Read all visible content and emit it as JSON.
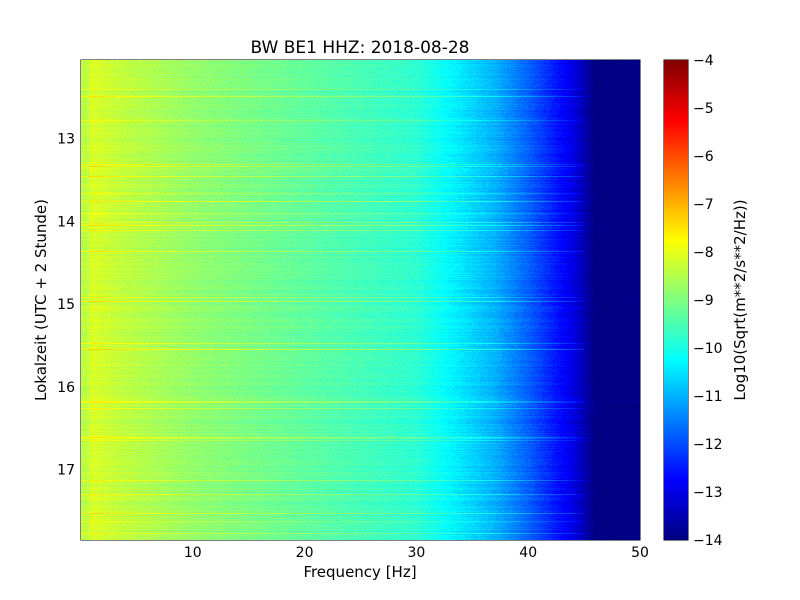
{
  "chart_data": {
    "type": "heatmap",
    "title": "BW BE1 HHZ: 2018-08-28",
    "xlabel": "Frequency [Hz]",
    "ylabel": "Lokalzeit (UTC + 2 Stunde)",
    "xlim": [
      0,
      50
    ],
    "ylim": [
      17.85,
      12.05
    ],
    "x_ticks": [
      10,
      20,
      30,
      40,
      50
    ],
    "y_ticks": [
      13,
      14,
      15,
      16,
      17
    ],
    "x_tick_labels": [
      "10",
      "20",
      "30",
      "40",
      "50"
    ],
    "y_tick_labels": [
      "13",
      "14",
      "15",
      "16",
      "17"
    ],
    "grid": true,
    "colormap": "jet",
    "colorbar": {
      "label": "Log10(Sqrt(m**2/s**2/Hz))",
      "range": [
        -14,
        -4
      ],
      "ticks": [
        -4,
        -5,
        -6,
        -7,
        -8,
        -9,
        -10,
        -11,
        -12,
        -13,
        -14
      ],
      "tick_labels": [
        "−4",
        "−5",
        "−6",
        "−7",
        "−8",
        "−9",
        "−10",
        "−11",
        "−12",
        "−13",
        "−14"
      ]
    },
    "approx_profile": [
      {
        "freq_hz": 0.5,
        "value": -8.4
      },
      {
        "freq_hz": 1,
        "value": -8.1
      },
      {
        "freq_hz": 3,
        "value": -8.3
      },
      {
        "freq_hz": 10,
        "value": -8.8
      },
      {
        "freq_hz": 20,
        "value": -9.3
      },
      {
        "freq_hz": 30,
        "value": -9.8
      },
      {
        "freq_hz": 33,
        "value": -10.3
      },
      {
        "freq_hz": 37,
        "value": -11.0
      },
      {
        "freq_hz": 40,
        "value": -11.8
      },
      {
        "freq_hz": 44,
        "value": -13.0
      },
      {
        "freq_hz": 46,
        "value": -14.0
      },
      {
        "freq_hz": 50,
        "value": -14.0
      }
    ]
  }
}
